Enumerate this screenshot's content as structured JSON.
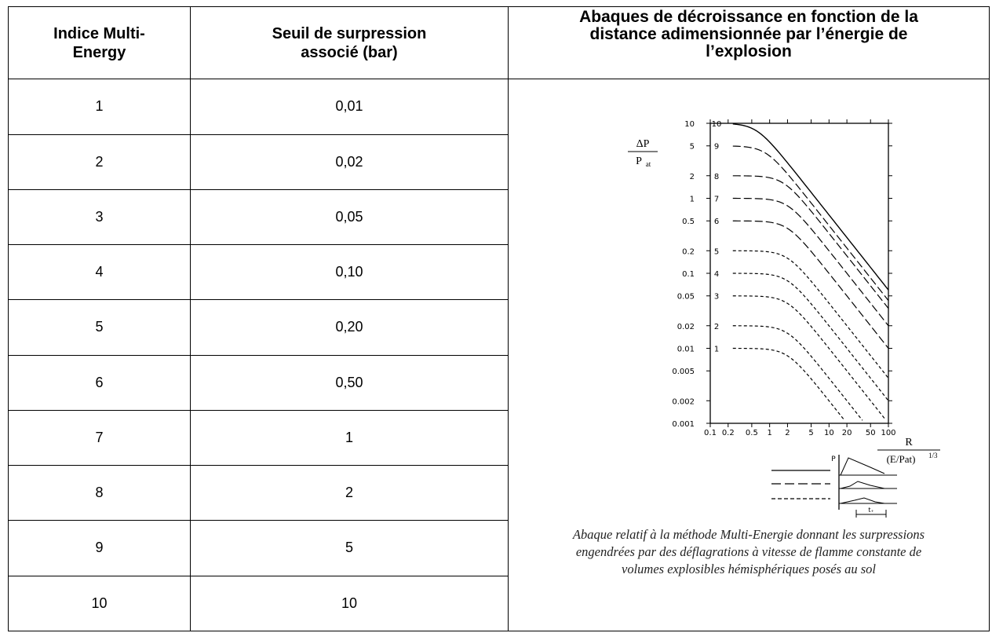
{
  "table": {
    "headers": [
      "Indice Multi-\nEnergy",
      "Seuil de surpression\nassocié (bar)",
      "Abaques de décroissance en fonction de la\ndistance adimensionnée par l’énergie de\nl’explosion"
    ],
    "rows": [
      {
        "index": "1",
        "seuil": "0,01"
      },
      {
        "index": "2",
        "seuil": "0,02"
      },
      {
        "index": "3",
        "seuil": "0,05"
      },
      {
        "index": "4",
        "seuil": "0,10"
      },
      {
        "index": "5",
        "seuil": "0,20"
      },
      {
        "index": "6",
        "seuil": "0,50"
      },
      {
        "index": "7",
        "seuil": "1"
      },
      {
        "index": "8",
        "seuil": "2"
      },
      {
        "index": "9",
        "seuil": "5"
      },
      {
        "index": "10",
        "seuil": "10"
      }
    ]
  },
  "chart_data": {
    "type": "line",
    "scale": "log-log",
    "ylabel_num": "ΔP",
    "ylabel_den": "P",
    "ylabel_den_sub": "at",
    "xlabel_num": "R",
    "xlabel_den": "(E/Pat)",
    "xlabel_den_sup": "1/3",
    "y_ticks": [
      "10",
      "5",
      "2",
      "1",
      "0.5",
      "0.2",
      "0.1",
      "0.05",
      "0.02",
      "0.01",
      "0.005",
      "0.002",
      "0.001"
    ],
    "y_tick_values": [
      10,
      5,
      2,
      1,
      0.5,
      0.2,
      0.1,
      0.05,
      0.02,
      0.01,
      0.005,
      0.002,
      0.001
    ],
    "x_ticks": [
      "0.1",
      "0.2",
      "0.5",
      "1",
      "2",
      "5",
      "10",
      "20",
      "50",
      "100"
    ],
    "x_tick_values": [
      0.1,
      0.2,
      0.5,
      1,
      2,
      5,
      10,
      20,
      50,
      100
    ],
    "xlim": [
      0.1,
      100
    ],
    "ylim": [
      0.001,
      10
    ],
    "series": [
      {
        "name": "10",
        "style": "solid",
        "plateau": 10
      },
      {
        "name": "9",
        "style": "long-dash",
        "plateau": 5
      },
      {
        "name": "8",
        "style": "long-dash",
        "plateau": 2
      },
      {
        "name": "7",
        "style": "long-dash",
        "plateau": 1
      },
      {
        "name": "6",
        "style": "long-dash",
        "plateau": 0.5
      },
      {
        "name": "5",
        "style": "short-dash",
        "plateau": 0.2
      },
      {
        "name": "4",
        "style": "short-dash",
        "plateau": 0.1
      },
      {
        "name": "3",
        "style": "short-dash",
        "plateau": 0.05
      },
      {
        "name": "2",
        "style": "short-dash",
        "plateau": 0.02
      },
      {
        "name": "1",
        "style": "short-dash",
        "plateau": 0.01
      }
    ],
    "inset": {
      "p_label": "P",
      "t_label": "t₊"
    }
  },
  "caption": [
    "Abaque relatif à la méthode Multi-Energie donnant les surpressions",
    "engendrées par des déflagrations à vitesse de flamme constante de",
    "volumes explosibles hémisphériques posés au sol"
  ]
}
